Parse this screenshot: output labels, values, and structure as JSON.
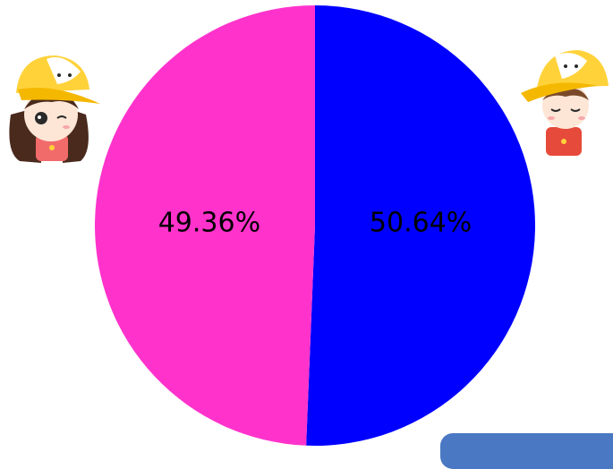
{
  "chart_data": {
    "type": "pie",
    "slices": [
      {
        "label": "50.64%",
        "value": 50.64,
        "color": "#0000ff"
      },
      {
        "label": "49.36%",
        "value": 49.36,
        "color": "#ff33cc"
      }
    ]
  },
  "decorations": {
    "left_character_icon": "cartoon-girl-cap-winking-icon",
    "right_character_icon": "cartoon-boy-cap-blushing-icon",
    "bottom_right_element": "blue-rounded-pill"
  }
}
